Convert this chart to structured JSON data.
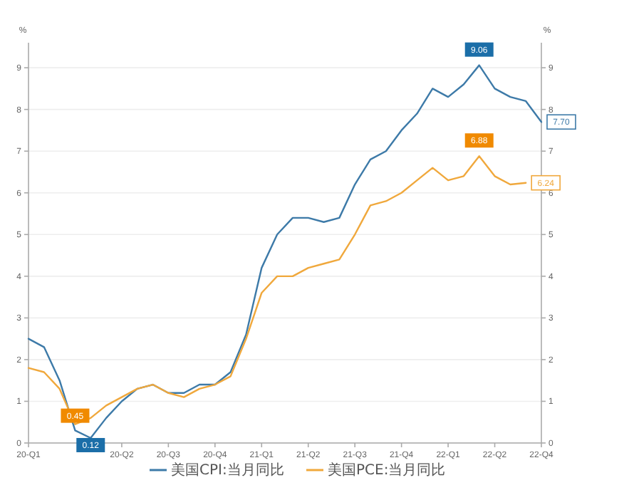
{
  "chart_data": {
    "type": "line",
    "ylabel": "%",
    "y2label": "%",
    "categories": [
      "20-Q1",
      null,
      null,
      null,
      null,
      null,
      "20-Q2",
      null,
      null,
      "20-Q3",
      null,
      null,
      "20-Q4",
      null,
      null,
      "21-Q1",
      null,
      null,
      "21-Q2",
      null,
      null,
      "21-Q3",
      null,
      null,
      "21-Q4",
      null,
      null,
      "22-Q1",
      null,
      null,
      "22-Q2",
      null,
      null,
      "22-Q4"
    ],
    "ylim": [
      0,
      9.6
    ],
    "yticks": [
      0,
      1,
      2,
      3,
      4,
      5,
      6,
      7,
      8,
      9
    ],
    "y2lim": [
      0,
      9.6
    ],
    "y2ticks": [
      0,
      1,
      2,
      3,
      4,
      5,
      6,
      7,
      8,
      9
    ],
    "grid": "y",
    "legend": "bottom",
    "marker": "none",
    "series": [
      {
        "name": "美国CPI:当月同比",
        "color": "#3d7aa8",
        "values": [
          2.5,
          2.3,
          1.5,
          0.3,
          0.12,
          0.6,
          1.0,
          1.3,
          1.4,
          1.2,
          1.2,
          1.4,
          1.4,
          1.7,
          2.6,
          4.2,
          5.0,
          5.4,
          5.4,
          5.3,
          5.4,
          6.2,
          6.8,
          7.0,
          7.5,
          7.9,
          8.5,
          8.3,
          8.6,
          9.06,
          8.5,
          8.3,
          8.2,
          7.7
        ],
        "value_labels": [
          null,
          null,
          null,
          null,
          "0.12",
          null,
          null,
          null,
          null,
          null,
          null,
          null,
          null,
          null,
          null,
          null,
          null,
          null,
          null,
          null,
          null,
          null,
          null,
          null,
          null,
          null,
          null,
          null,
          null,
          "9.06",
          null,
          null,
          null,
          "7.70"
        ]
      },
      {
        "name": "美国PCE:当月同比",
        "color": "#f0a83c",
        "values": [
          1.8,
          1.7,
          1.3,
          0.45,
          0.6,
          0.9,
          1.1,
          1.3,
          1.4,
          1.2,
          1.1,
          1.3,
          1.4,
          1.6,
          2.5,
          3.6,
          4.0,
          4.0,
          4.2,
          4.3,
          4.4,
          5.0,
          5.7,
          5.8,
          6.0,
          6.3,
          6.6,
          6.3,
          6.4,
          6.88,
          6.4,
          6.2,
          6.24,
          null
        ],
        "value_labels": [
          null,
          null,
          null,
          "0.45",
          null,
          null,
          null,
          null,
          null,
          null,
          null,
          null,
          null,
          null,
          null,
          null,
          null,
          null,
          null,
          null,
          null,
          null,
          null,
          null,
          null,
          null,
          null,
          null,
          null,
          "6.88",
          null,
          null,
          "6.24",
          null
        ]
      }
    ]
  }
}
